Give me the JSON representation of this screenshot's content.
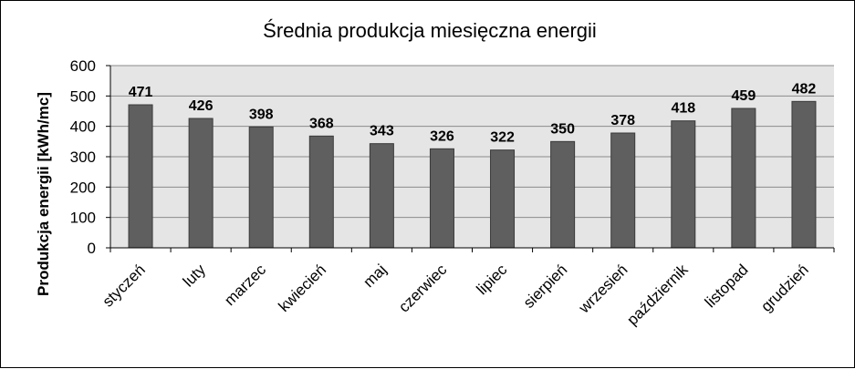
{
  "chart_data": {
    "type": "bar",
    "title": "Średnia produkcja miesięczna energii",
    "xlabel": "",
    "ylabel": "Produkcja energii [kWh/mc]",
    "categories": [
      "styczeń",
      "luty",
      "marzec",
      "kwiecień",
      "maj",
      "czerwiec",
      "lipiec",
      "sierpień",
      "wrzesień",
      "październik",
      "listopad",
      "grudzień"
    ],
    "series": [
      {
        "values": [
          471,
          426,
          398,
          368,
          343,
          326,
          322,
          350,
          378,
          418,
          459,
          482
        ]
      }
    ],
    "data_labels": [
      "471",
      "426",
      "398",
      "368",
      "343",
      "326",
      "322",
      "350",
      "378",
      "418",
      "459",
      "482"
    ],
    "yticks": [
      "0",
      "100",
      "200",
      "300",
      "400",
      "500",
      "600"
    ],
    "ylim": [
      0,
      600
    ],
    "grid": true,
    "legend": "none",
    "colors": {
      "bar": "#5f5f5f",
      "bar_edge": "#3a3a3a",
      "plot_background": "#e5e5e5",
      "gridline": "#8a8a8a"
    }
  }
}
